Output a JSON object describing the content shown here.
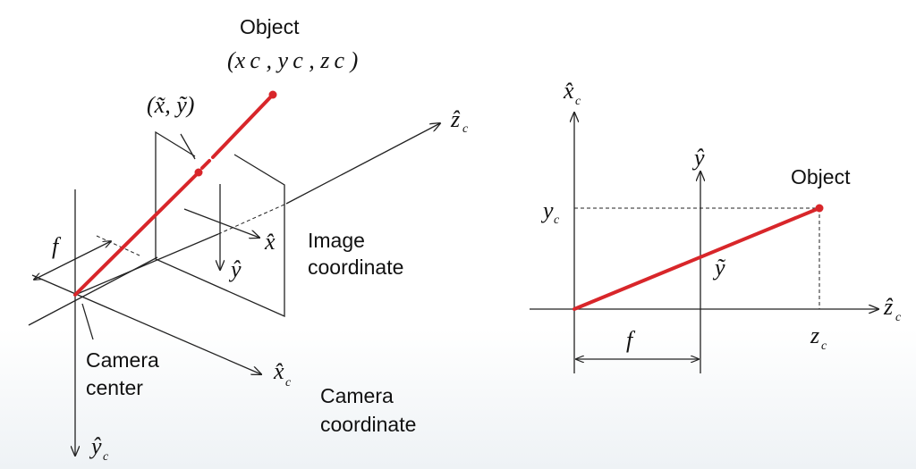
{
  "left_panel": {
    "object_label": "Object",
    "object_coords": "(x c , y c , z c )",
    "image_point_label": "(x̃, ỹ)",
    "zc_axis": "ẑ",
    "zc_sub": "c",
    "xc_axis": "x̂",
    "xc_sub": "c",
    "yc_axis": "ŷ",
    "yc_sub": "c",
    "x_hat": "x̂",
    "y_hat": "ŷ",
    "focal_label": "f",
    "image_coord_line1": "Image",
    "image_coord_line2": "coordinate",
    "camera_center_line1": "Camera",
    "camera_center_line2": "center",
    "camera_coord_line1": "Camera",
    "camera_coord_line2": "coordinate"
  },
  "right_panel": {
    "xc_axis": "x̂",
    "xc_sub": "c",
    "y_hat": "ŷ",
    "object_label": "Object",
    "yc_label": "y",
    "yc_sub": "c",
    "y_tilde": "ỹ",
    "zc_axis": "ẑ",
    "zc_sub": "c",
    "zc_label": "z",
    "zc_label_sub": "c",
    "focal_label": "f"
  },
  "colors": {
    "ray": "#d8262a",
    "lines": "#222222"
  }
}
